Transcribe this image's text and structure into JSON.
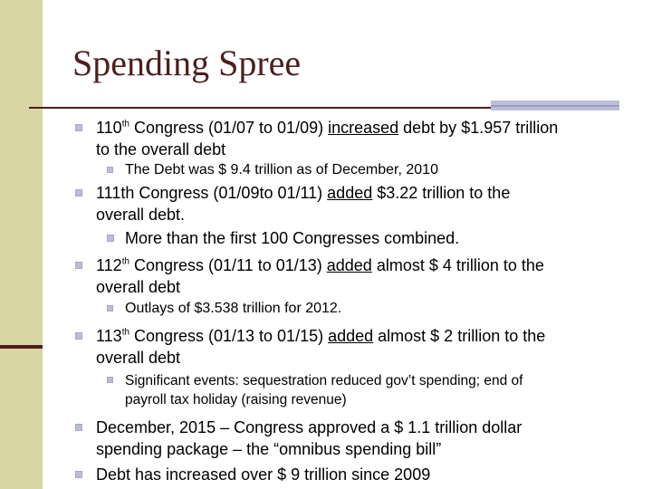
{
  "slide": {
    "title": "Spending Spree",
    "bullets": [
      {
        "pre": "110",
        "sup": "th",
        "post": " Congress (01/07 to 01/09) ",
        "u": "increased",
        "rest1": " debt by $1.957 trillion",
        "rest2": "to the overall debt",
        "sub": "The Debt was $ 9.4 trillion as of December, 2010"
      },
      {
        "pre": "111th Congress (01/09to 01/11) ",
        "u": "added",
        "rest1": " $3.22 trillion to the",
        "rest2": "overall debt.",
        "sub": "More than the first 100 Congresses combined."
      },
      {
        "pre": "112",
        "sup": "th",
        "post": " Congress (01/11 to 01/13) ",
        "u": "added",
        "rest1": " almost $ 4 trillion to the",
        "rest2": "overall debt",
        "sub": "Outlays of $3.538 trillion for 2012."
      },
      {
        "pre": "113",
        "sup": "th",
        "post": " Congress (01/13 to 01/15) ",
        "u": "added",
        "rest1": " almost $ 2 trillion to the",
        "rest2": "overall debt",
        "sub1": "Significant events:  sequestration reduced gov’t spending; end of",
        "sub2": "payroll tax holiday (raising revenue)"
      },
      {
        "line1": "December, 2015 – Congress approved a $ 1.1 trillion dollar",
        "line2": "spending package – the “omnibus spending bill”"
      },
      {
        "line1": "Debt has increased over $ 9 trillion since 2009"
      }
    ]
  },
  "colors": {
    "title": "#4d1f1f",
    "left_bar": "#d9d6a3",
    "bullet": "#bcbdd7"
  }
}
